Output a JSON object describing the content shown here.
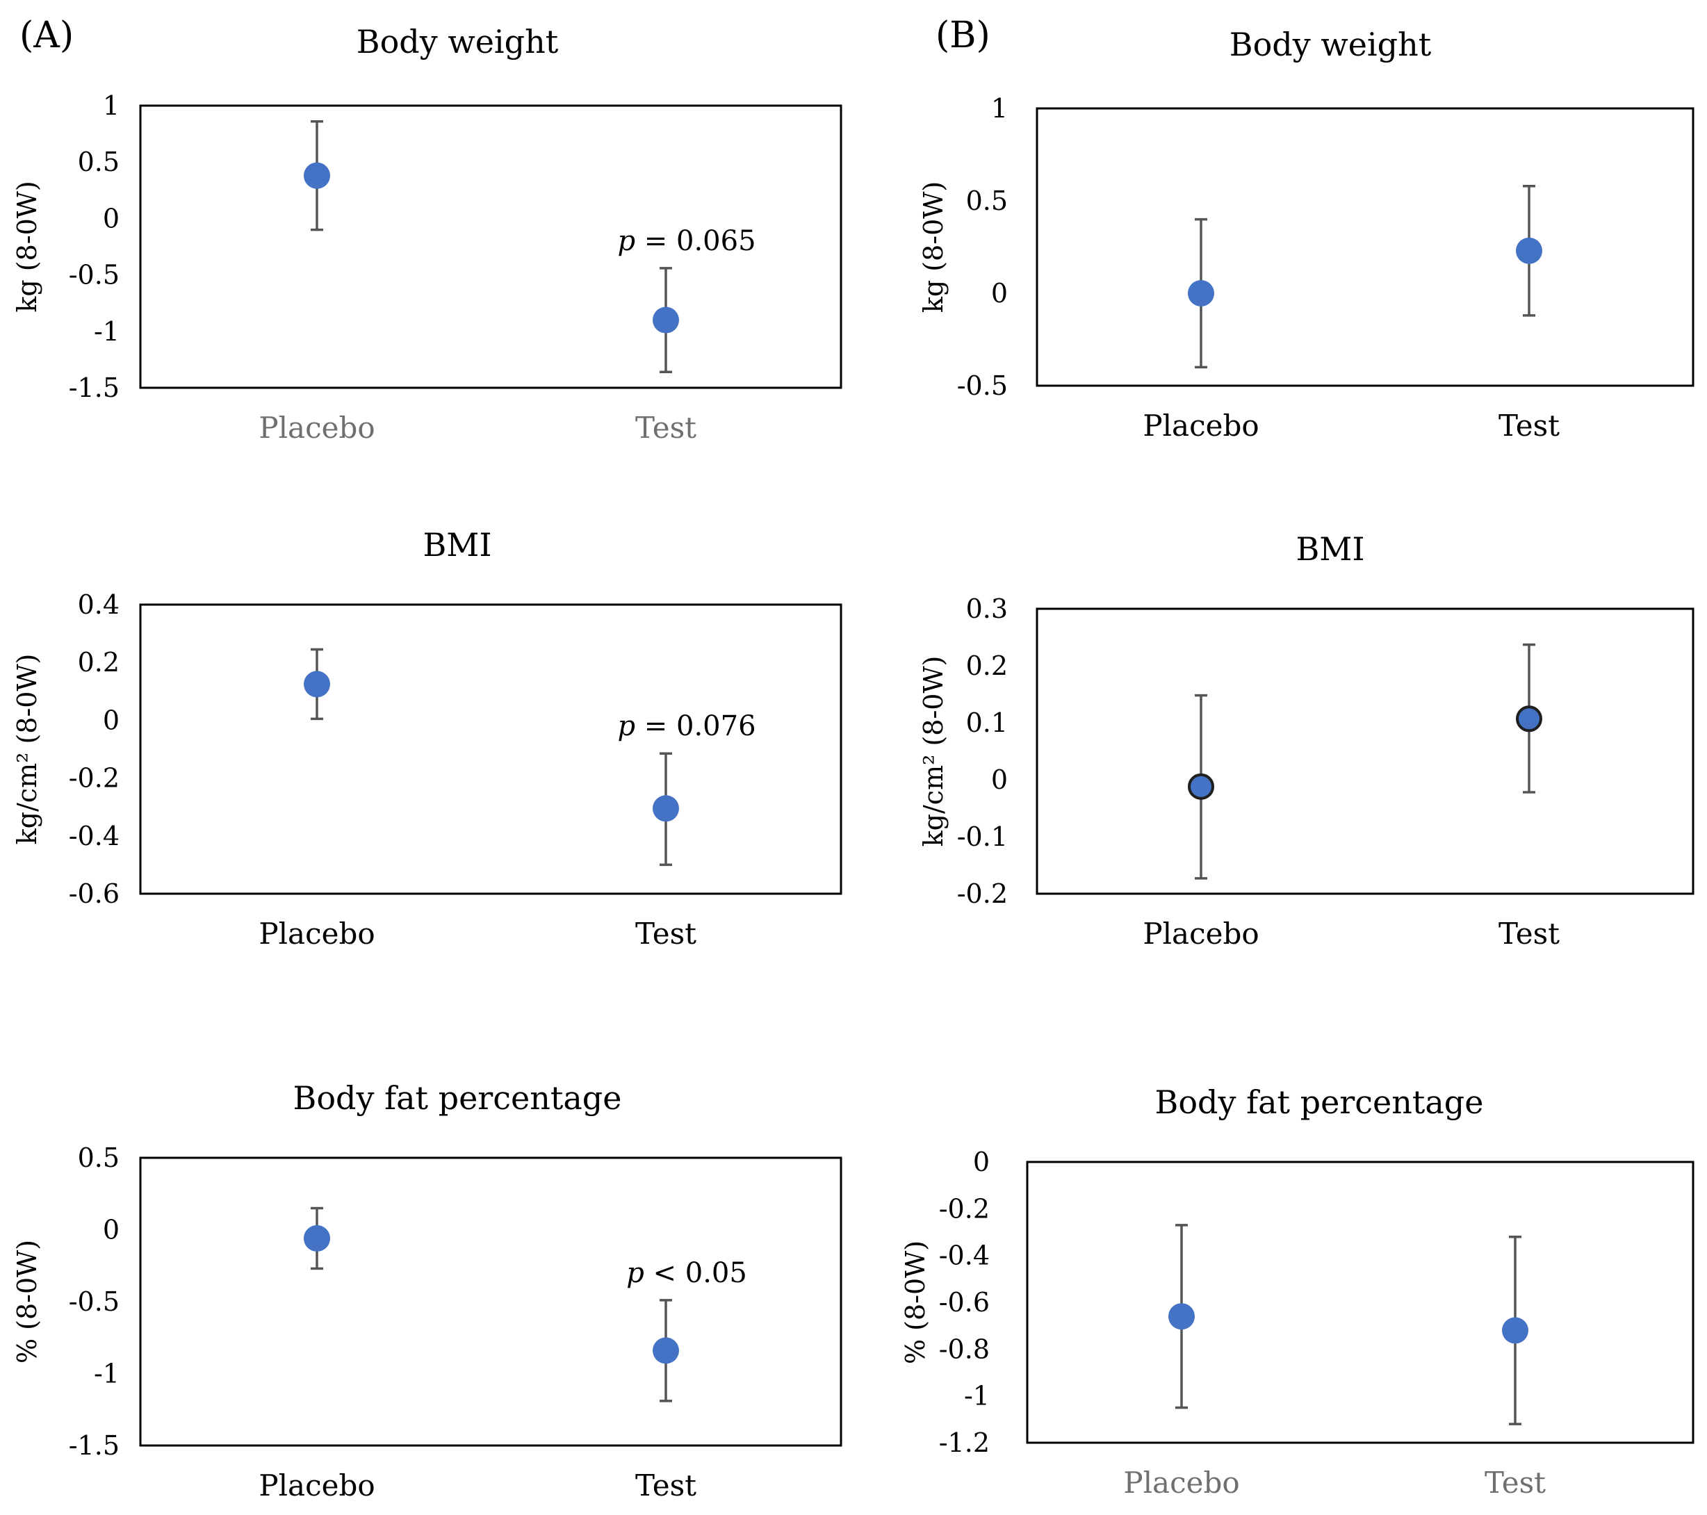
{
  "panels": [
    {
      "label": "(A)"
    },
    {
      "label": "(B)"
    }
  ],
  "colors": {
    "marker": "#4472c4",
    "marker_outline_dark": "#1f1f1f",
    "errorbar": "#555555",
    "frame": "#000000"
  },
  "chart_data": [
    {
      "id": "a-body-weight",
      "panel": "(A)",
      "type": "scatter",
      "title": "Body weight",
      "ylabel": "kg (8-0W)",
      "categories": [
        "Placebo",
        "Test"
      ],
      "xtick_style": "grey",
      "ylim": [
        -1.5,
        1
      ],
      "yticks": [
        "1",
        "0.5",
        "0",
        "-0.5",
        "-1",
        "-1.5"
      ],
      "ytick_values": [
        1,
        0.5,
        0,
        -0.5,
        -1,
        -1.5
      ],
      "values": [
        0.38,
        -0.9
      ],
      "err_low": [
        -0.1,
        -1.36
      ],
      "err_high": [
        0.86,
        -0.44
      ],
      "annotation": {
        "p": "p",
        "rest": " = 0.065",
        "category": "Test"
      }
    },
    {
      "id": "a-bmi",
      "panel": "(A)",
      "type": "scatter",
      "title": "BMI",
      "ylabel": "kg/cm² (8-0W)",
      "categories": [
        "Placebo",
        "Test"
      ],
      "xtick_style": "black",
      "ylim": [
        -0.6,
        0.4
      ],
      "yticks": [
        "0.4",
        "0.2",
        "0",
        "-0.2",
        "-0.4",
        "-0.6"
      ],
      "ytick_values": [
        0.4,
        0.2,
        0,
        -0.2,
        -0.4,
        -0.6
      ],
      "values": [
        0.125,
        -0.305
      ],
      "err_low": [
        0.005,
        -0.5
      ],
      "err_high": [
        0.245,
        -0.115
      ],
      "annotation": {
        "p": "p",
        "rest": " = 0.076",
        "category": "Test"
      }
    },
    {
      "id": "a-body-fat",
      "panel": "(A)",
      "type": "scatter",
      "title": "Body fat percentage",
      "ylabel": "% (8-0W)",
      "categories": [
        "Placebo",
        "Test"
      ],
      "xtick_style": "black",
      "ylim": [
        -1.5,
        0.5
      ],
      "yticks": [
        "0.5",
        "0",
        "-0.5",
        "-1",
        "-1.5"
      ],
      "ytick_values": [
        0.5,
        0,
        -0.5,
        -1,
        -1.5
      ],
      "values": [
        -0.06,
        -0.84
      ],
      "err_low": [
        -0.27,
        -1.19
      ],
      "err_high": [
        0.15,
        -0.49
      ],
      "annotation": {
        "p": "p",
        "rest": " < 0.05",
        "category": "Test"
      }
    },
    {
      "id": "b-body-weight",
      "panel": "(B)",
      "type": "scatter",
      "title": "Body weight",
      "ylabel": "kg (8-0W)",
      "categories": [
        "Placebo",
        "Test"
      ],
      "xtick_style": "black",
      "ylim": [
        -0.5,
        1
      ],
      "yticks": [
        "1",
        "0.5",
        "0",
        "-0.5"
      ],
      "ytick_values": [
        1,
        0.5,
        0,
        -0.5
      ],
      "values": [
        0.0,
        0.23
      ],
      "err_low": [
        -0.4,
        -0.12
      ],
      "err_high": [
        0.4,
        0.58
      ]
    },
    {
      "id": "b-bmi",
      "panel": "(B)",
      "type": "scatter",
      "title": "BMI",
      "ylabel": "kg/cm² (8-0W)",
      "categories": [
        "Placebo",
        "Test"
      ],
      "xtick_style": "black",
      "marker_outline": true,
      "ylim": [
        -0.2,
        0.3
      ],
      "yticks": [
        "0.3",
        "0.2",
        "0.1",
        "0",
        "-0.1",
        "-0.2"
      ],
      "ytick_values": [
        0.3,
        0.2,
        0.1,
        0,
        -0.1,
        -0.2
      ],
      "values": [
        -0.012,
        0.107
      ],
      "err_low": [
        -0.173,
        -0.022
      ],
      "err_high": [
        0.148,
        0.237
      ]
    },
    {
      "id": "b-body-fat",
      "panel": "(B)",
      "type": "scatter",
      "title": "Body fat percentage",
      "ylabel": "% (8-0W)",
      "categories": [
        "Placebo",
        "Test"
      ],
      "xtick_style": "grey",
      "ylim": [
        -1.2,
        0
      ],
      "yticks": [
        "0",
        "-0.2",
        "-0.4",
        "-0.6",
        "-0.8",
        "-1",
        "-1.2"
      ],
      "ytick_values": [
        0,
        -0.2,
        -0.4,
        -0.6,
        -0.8,
        -1,
        -1.2
      ],
      "values": [
        -0.66,
        -0.72
      ],
      "err_low": [
        -1.05,
        -1.12
      ],
      "err_high": [
        -0.27,
        -0.32
      ]
    }
  ]
}
